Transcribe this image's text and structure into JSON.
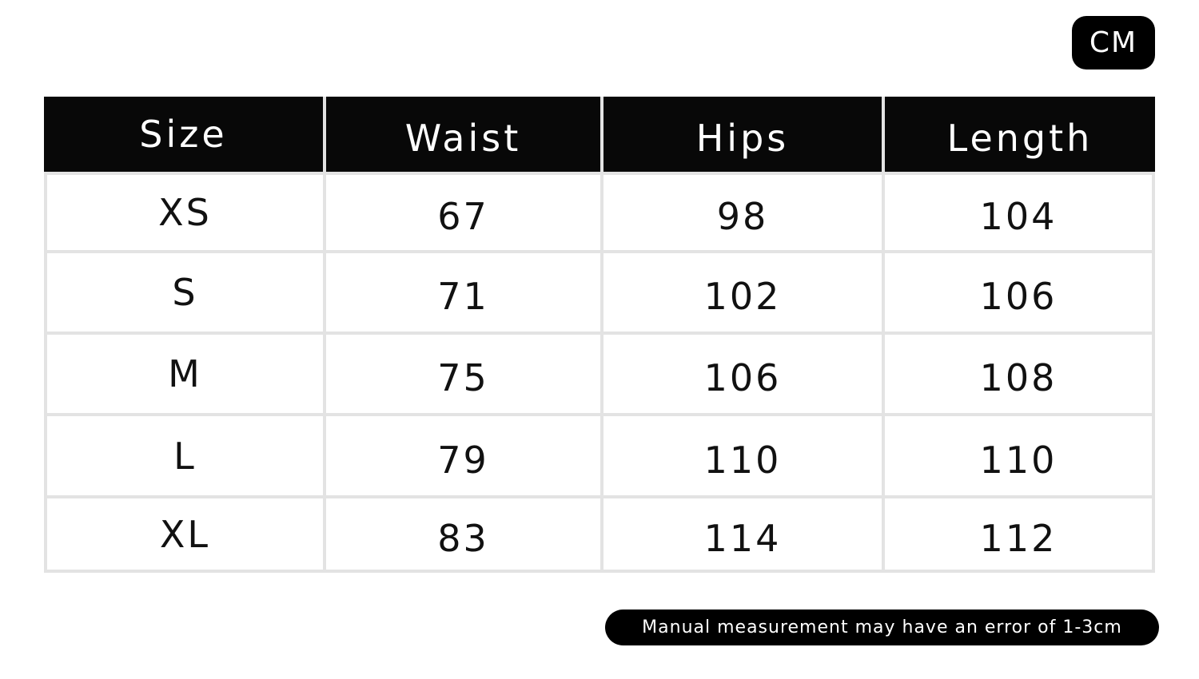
{
  "unit_label": "CM",
  "table": {
    "headers": [
      "Size",
      "Waist",
      "Hips",
      "Length"
    ],
    "rows": [
      [
        "XS",
        "67",
        "98",
        "104"
      ],
      [
        "S",
        "71",
        "102",
        "106"
      ],
      [
        "M",
        "75",
        "106",
        "108"
      ],
      [
        "L",
        "79",
        "110",
        "110"
      ],
      [
        "XL",
        "83",
        "114",
        "112"
      ]
    ]
  },
  "note": "Manual measurement may have an error of 1-3cm"
}
